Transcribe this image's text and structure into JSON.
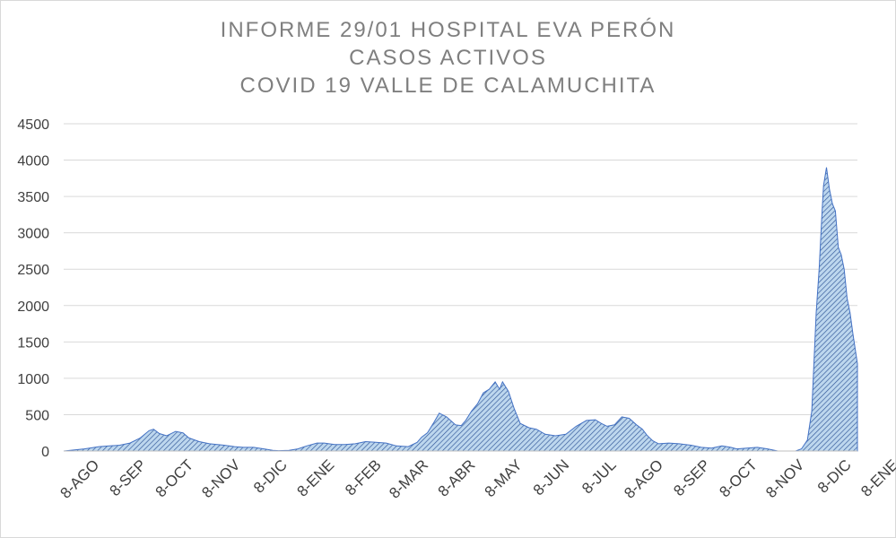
{
  "chart_data": {
    "type": "area",
    "title": [
      "INFORME 29/01 HOSPITAL EVA PERÓN",
      "CASOS ACTIVOS",
      "COVID 19 VALLE DE CALAMUCHITA"
    ],
    "xlabel": "",
    "ylabel": "",
    "ylim": [
      0,
      4500
    ],
    "yticks": [
      "0",
      "500",
      "1000",
      "1500",
      "2000",
      "2500",
      "3000",
      "3500",
      "4000",
      "4500"
    ],
    "x_tick_labels": [
      "8-AGO",
      "8-SEP",
      "8-OCT",
      "8-NOV",
      "8-DIC",
      "8-ENE",
      "8-FEB",
      "8-MAR",
      "8-ABR",
      "8-MAY",
      "8-JUN",
      "8-JUL",
      "8-AGO",
      "8-SEP",
      "8-OCT",
      "8-NOV",
      "8-DIC",
      "8-ENE"
    ],
    "grid": true,
    "legend": "none",
    "colors": {
      "fill": "#9dc3e6",
      "hatch": "#2f5597",
      "outline": "#4472c4",
      "grid": "#d9d9d9"
    },
    "series": [
      {
        "x": [
          "2020-08-08",
          "2020-08-22",
          "2020-09-01",
          "2020-09-08",
          "2020-09-15",
          "2020-09-22",
          "2020-09-29",
          "2020-10-05",
          "2020-10-08",
          "2020-10-12",
          "2020-10-17",
          "2020-10-23",
          "2020-10-28",
          "2020-11-01",
          "2020-11-08",
          "2020-11-15",
          "2020-11-25",
          "2020-12-02",
          "2020-12-08",
          "2020-12-15",
          "2020-12-22",
          "2020-12-28",
          "2021-01-01",
          "2021-01-08",
          "2021-01-14",
          "2021-01-20",
          "2021-01-27",
          "2021-02-01",
          "2021-02-08",
          "2021-02-15",
          "2021-02-22",
          "2021-03-01",
          "2021-03-08",
          "2021-03-15",
          "2021-03-22",
          "2021-03-30",
          "2021-04-05",
          "2021-04-08",
          "2021-04-12",
          "2021-04-16",
          "2021-04-20",
          "2021-04-25",
          "2021-05-01",
          "2021-05-05",
          "2021-05-08",
          "2021-05-12",
          "2021-05-16",
          "2021-05-20",
          "2021-05-24",
          "2021-05-28",
          "2021-05-31",
          "2021-06-02",
          "2021-06-06",
          "2021-06-10",
          "2021-06-14",
          "2021-06-20",
          "2021-06-25",
          "2021-07-01",
          "2021-07-08",
          "2021-07-15",
          "2021-07-22",
          "2021-07-29",
          "2021-08-04",
          "2021-08-08",
          "2021-08-12",
          "2021-08-17",
          "2021-08-22",
          "2021-08-27",
          "2021-09-01",
          "2021-09-05",
          "2021-09-08",
          "2021-09-12",
          "2021-09-16",
          "2021-09-23",
          "2021-09-30",
          "2021-10-08",
          "2021-10-15",
          "2021-10-22",
          "2021-10-29",
          "2021-11-04",
          "2021-11-08",
          "2021-11-15",
          "2021-11-22",
          "2021-11-29",
          "2021-12-06",
          "2021-12-10",
          "2021-12-14",
          "2021-12-18",
          "2021-12-22",
          "2021-12-26",
          "2021-12-29",
          "2022-01-01",
          "2022-01-03",
          "2022-01-05",
          "2022-01-06",
          "2022-01-08",
          "2022-01-10",
          "2022-01-12",
          "2022-01-14",
          "2022-01-16",
          "2022-01-18",
          "2022-01-20",
          "2022-01-22",
          "2022-01-24",
          "2022-01-26",
          "2022-01-29"
        ],
        "values": [
          0,
          30,
          60,
          70,
          80,
          110,
          180,
          280,
          300,
          240,
          210,
          270,
          250,
          180,
          130,
          100,
          80,
          60,
          50,
          50,
          30,
          10,
          5,
          10,
          30,
          70,
          110,
          110,
          90,
          90,
          100,
          130,
          120,
          110,
          70,
          60,
          120,
          190,
          250,
          380,
          520,
          470,
          360,
          350,
          420,
          550,
          650,
          800,
          850,
          950,
          850,
          950,
          820,
          580,
          380,
          320,
          300,
          230,
          210,
          230,
          340,
          420,
          430,
          380,
          340,
          360,
          470,
          450,
          360,
          300,
          220,
          140,
          100,
          110,
          100,
          80,
          50,
          40,
          70,
          50,
          30,
          40,
          50,
          30,
          0,
          0,
          0,
          0,
          30,
          150,
          550,
          1900,
          2500,
          3300,
          3650,
          3900,
          3600,
          3400,
          3300,
          2800,
          2700,
          2500,
          2100,
          1900,
          1600,
          1200
        ]
      }
    ]
  }
}
